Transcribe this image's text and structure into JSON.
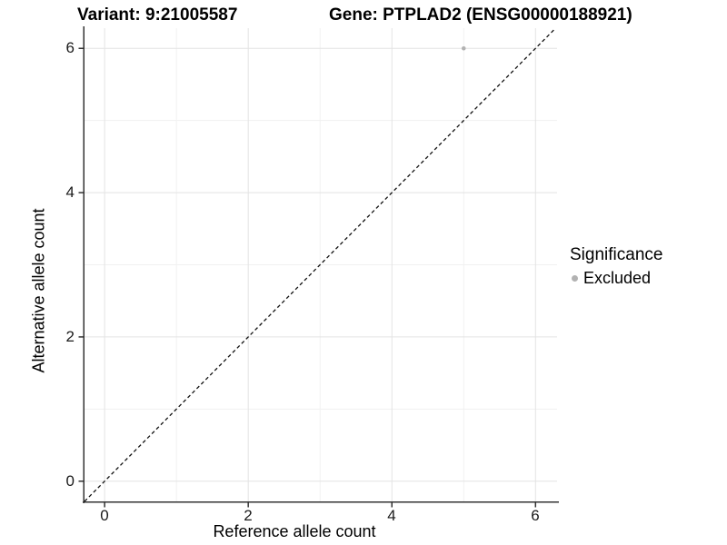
{
  "chart_data": {
    "type": "scatter",
    "titles": {
      "variant": "Variant: 9:21005587",
      "gene": "Gene: PTPLAD2 (ENSG00000188921)"
    },
    "xlabel": "Reference allele count",
    "ylabel": "Alternative allele count",
    "xlim": [
      -0.28,
      6.3
    ],
    "ylim": [
      -0.28,
      6.28
    ],
    "x_ticks": {
      "values": [
        0,
        2,
        4,
        6
      ],
      "labels": [
        "0",
        "2",
        "4",
        "6"
      ]
    },
    "y_ticks": {
      "values": [
        0,
        2,
        4,
        6
      ],
      "labels": [
        "0",
        "2",
        "4",
        "6"
      ]
    },
    "x_minor_ticks": [
      1,
      3,
      5
    ],
    "y_minor_ticks": [
      1,
      3,
      5
    ],
    "grid": "major+minor",
    "points": [
      {
        "x": 5,
        "y": 6,
        "series": "Excluded"
      }
    ],
    "identity_line": {
      "slope": 1,
      "intercept": 0,
      "style": "dashed"
    },
    "legend": {
      "title": "Significance",
      "position": "right",
      "items": [
        {
          "label": "Excluded",
          "color": "#b2b2b2",
          "marker": "circle"
        }
      ]
    }
  },
  "colors": {
    "point": "#b2b2b2",
    "axis": "#333333",
    "grid_major": "#e3e3e3",
    "grid_minor": "#f1f1f1",
    "identity_line": "#111111",
    "background": "#ffffff"
  }
}
